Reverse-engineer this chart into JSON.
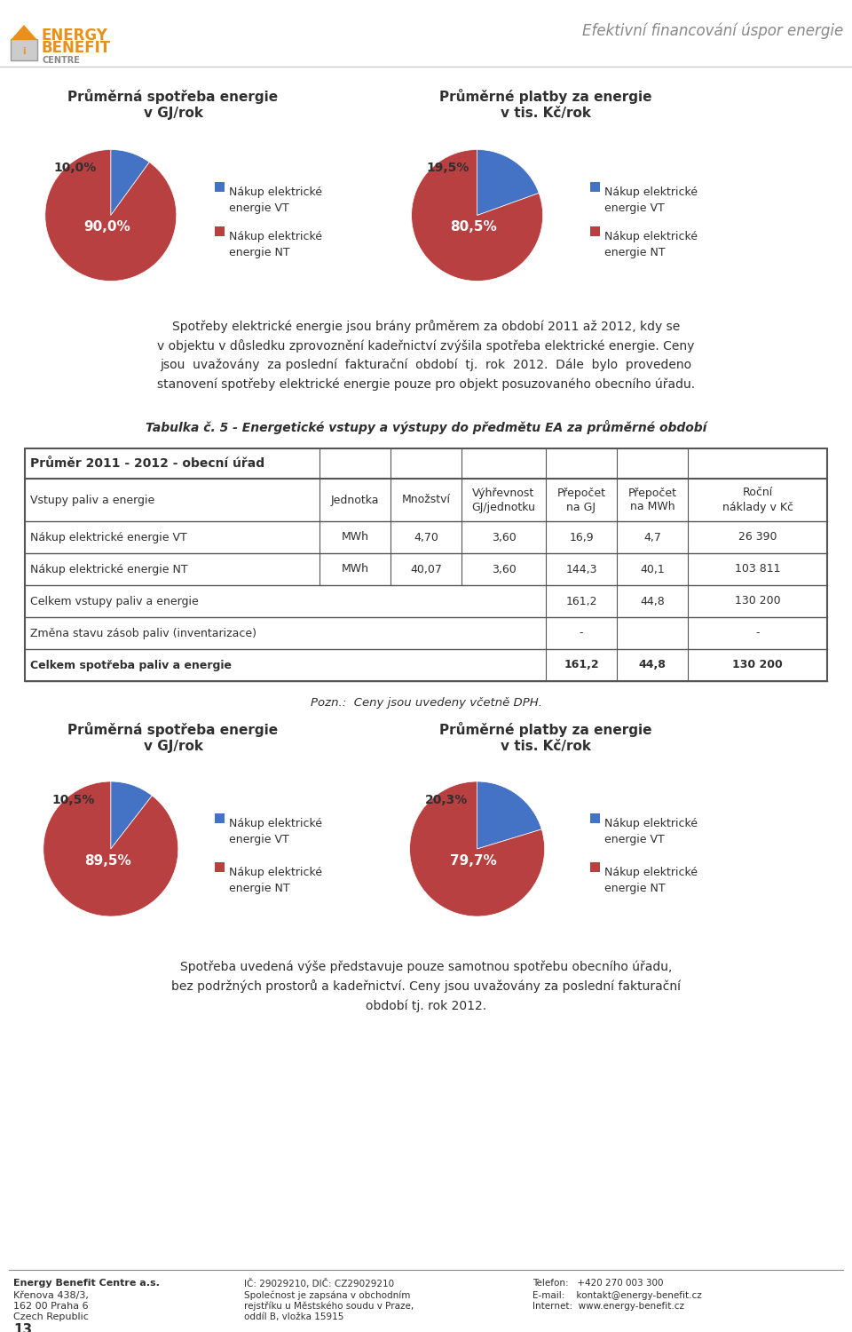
{
  "header_right": "Efektivní financování úsp or energie",
  "pie1_title1": "Průměrná spotřeba energie",
  "pie1_title2": "v GJ/rok",
  "pie2_title1": "Průměrné platby za energie",
  "pie2_title2": "v tis. Kč/rok",
  "pie1_values": [
    10.0,
    90.0
  ],
  "pie2_values": [
    19.5,
    80.5
  ],
  "pie3_values": [
    10.5,
    89.5
  ],
  "pie4_values": [
    20.3,
    79.7
  ],
  "pie_colors": [
    "#4472C4",
    "#B94040"
  ],
  "pie_labels1": [
    "10,0%",
    "90,0%"
  ],
  "pie_labels2": [
    "19,5%",
    "80,5%"
  ],
  "pie_labels3": [
    "10,5%",
    "89,5%"
  ],
  "pie_labels4": [
    "20,3%",
    "79,7%"
  ],
  "legend_label1": "Nákup elektrické\nenergie VT",
  "legend_label2": "Nákup elektrické\nenergie NT",
  "paragraph1_lines": [
    "Spotřeby elektrické energie jsou brány průměrem za období 2011 až 2012, kdy se",
    "v objektu v důsledku zprovoznění kadeřnictví zvýšila spotřeba elektrické energie. Ceny",
    "jsou  uvažovány  za poslední  fakturační  období  tj.  rok  2012.  Dále  bylo  provedeno",
    "stanovení spotřeby elektrické energie pouze pro objekt posuzovaného obecního úřadu."
  ],
  "table_caption": "Tabulka č. 5 - Energetické vstupy a výstupy do předmětu EA za průměrné období",
  "table_header_row": "Průměr 2011 - 2012 - obecní úřad",
  "table_cols": [
    "Vstupy paliv a energie",
    "Jednotka",
    "Množství",
    "Výhřevnost\nGJ/jednotku",
    "Přepočet\nna GJ",
    "Přepočet\nna MWh",
    "Roční\nnáklady v Kč"
  ],
  "table_rows": [
    [
      "Nákup elektrické energie VT",
      "MWh",
      "4,70",
      "3,60",
      "16,9",
      "4,7",
      "26 390"
    ],
    [
      "Nákup elektrické energie NT",
      "MWh",
      "40,07",
      "3,60",
      "144,3",
      "40,1",
      "103 811"
    ],
    [
      "Celkem vstupy paliv a energie",
      "",
      "",
      "",
      "161,2",
      "44,8",
      "130 200"
    ],
    [
      "Změna stavu zásob paliv (inventarizace)",
      "",
      "",
      "",
      "-",
      "",
      "-"
    ],
    [
      "Celkem spotřeba paliv a energie",
      "",
      "",
      "",
      "161,2",
      "44,8",
      "130 200"
    ]
  ],
  "bold_rows": [
    4
  ],
  "note_text": "Pozn.:  Ceny jsou uvedeny včetně DPH.",
  "pie3_title1": "Průměrná spotřeba energie",
  "pie3_title2": "v GJ/rok",
  "pie4_title1": "Průměrné platby za energie",
  "pie4_title2": "v tis. Kč/rok",
  "paragraph2_lines": [
    "Spotřeba uvedená výše představuje pouze samotnou spotřebu obecního úřadu,",
    "bez podržných prostorů a kadeřnictví. Ceny jsou uvažovány za poslední fakturační",
    "období tj. rok 2012."
  ],
  "page_number": "13"
}
